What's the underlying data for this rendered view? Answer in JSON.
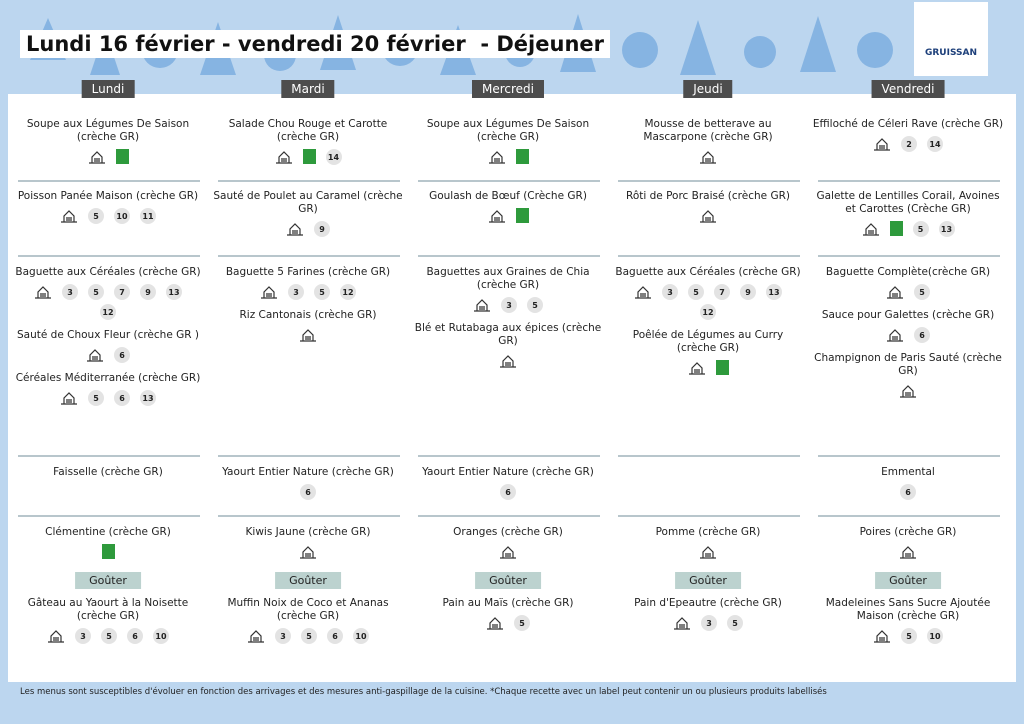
{
  "header": {
    "title": "Lundi 16 février - vendredi 20 février  - Déjeuner",
    "logo": "GRUISSAN"
  },
  "snack_label": "Goûter",
  "days": [
    {
      "name": "Lundi",
      "sections": [
        [
          {
            "name": "Soupe aux Légumes De Saison (crèche GR)",
            "house": true,
            "bio": true
          }
        ],
        [
          {
            "name": "Poisson Panée Maison (crèche GR)",
            "house": true,
            "allergens": [
              5,
              10,
              11
            ]
          }
        ],
        [
          {
            "name": "Baguette aux Céréales (crèche GR)",
            "house": true,
            "allergens": [
              3,
              5,
              7,
              9,
              13,
              12
            ]
          },
          {
            "name": "Sauté de Choux Fleur (crèche GR )",
            "house": true,
            "allergens": [
              6
            ]
          },
          {
            "name": "Céréales Méditerranée (crèche GR)",
            "house": true,
            "allergens": [
              5,
              6,
              13
            ]
          }
        ],
        [
          {
            "name": "Faisselle (crèche GR)"
          }
        ],
        [
          {
            "name": "Clémentine (crèche GR)",
            "bio": true
          }
        ]
      ],
      "snack": [
        {
          "name": "Gâteau au Yaourt à la Noisette (crèche GR)",
          "house": true,
          "allergens": [
            3,
            5,
            6,
            10
          ]
        }
      ]
    },
    {
      "name": "Mardi",
      "sections": [
        [
          {
            "name": "Salade Chou Rouge et Carotte (crèche GR)",
            "house": true,
            "bio": true,
            "allergens": [
              14
            ]
          }
        ],
        [
          {
            "name": "Sauté de Poulet au Caramel (crèche GR)",
            "house": true,
            "allergens": [
              9
            ]
          }
        ],
        [
          {
            "name": "Baguette 5 Farines (crèche GR)",
            "house": true,
            "allergens": [
              3,
              5,
              12
            ]
          },
          {
            "name": "Riz Cantonais (crèche GR)",
            "house": true
          }
        ],
        [
          {
            "name": "Yaourt Entier Nature (crèche GR)",
            "allergens": [
              6
            ]
          }
        ],
        [
          {
            "name": "Kiwis Jaune (crèche GR)",
            "house": true
          }
        ]
      ],
      "snack": [
        {
          "name": "Muffin Noix de Coco et Ananas (crèche GR)",
          "house": true,
          "allergens": [
            3,
            5,
            6,
            10
          ]
        }
      ]
    },
    {
      "name": "Mercredi",
      "sections": [
        [
          {
            "name": "Soupe aux Légumes De Saison (crèche GR)",
            "house": true,
            "bio": true
          }
        ],
        [
          {
            "name": "Goulash de Bœuf (Crèche GR)",
            "house": true,
            "bio": true
          }
        ],
        [
          {
            "name": "Baguettes aux Graines de Chia (crèche GR)",
            "house": true,
            "allergens": [
              3,
              5
            ]
          },
          {
            "name": "Blé et Rutabaga aux épices (crèche GR)",
            "house": true
          }
        ],
        [
          {
            "name": "Yaourt Entier Nature (crèche GR)",
            "allergens": [
              6
            ]
          }
        ],
        [
          {
            "name": "Oranges (crèche GR)",
            "house": true
          }
        ]
      ],
      "snack": [
        {
          "name": "Pain au Maïs (crèche GR)",
          "house": true,
          "allergens": [
            5
          ]
        }
      ]
    },
    {
      "name": "Jeudi",
      "sections": [
        [
          {
            "name": "Mousse de betterave au Mascarpone (crèche GR)",
            "house": true
          }
        ],
        [
          {
            "name": "Rôti de Porc Braisé (crèche GR)",
            "house": true
          }
        ],
        [
          {
            "name": "Baguette aux Céréales (crèche GR)",
            "house": true,
            "allergens": [
              3,
              5,
              7,
              9,
              13,
              12
            ]
          },
          {
            "name": "Poêlée de Légumes au Curry (crèche GR)",
            "house": true,
            "bio": true
          }
        ],
        [],
        [
          {
            "name": "Pomme (crèche GR)",
            "house": true
          }
        ]
      ],
      "snack": [
        {
          "name": "Pain d'Epeautre (crèche GR)",
          "house": true,
          "allergens": [
            3,
            5
          ]
        }
      ]
    },
    {
      "name": "Vendredi",
      "sections": [
        [
          {
            "name": "Effiloché de Céleri Rave (crèche GR)",
            "house": true,
            "allergens": [
              2,
              14
            ]
          }
        ],
        [
          {
            "name": "Galette de Lentilles Corail, Avoines et Carottes (Crèche GR)",
            "house": true,
            "bio": true,
            "allergens": [
              5,
              13
            ]
          }
        ],
        [
          {
            "name": "Baguette Complète(crèche GR)",
            "house": true,
            "allergens": [
              5
            ]
          },
          {
            "name": "Sauce pour Galettes (crèche GR)",
            "house": true,
            "allergens": [
              6
            ]
          },
          {
            "name": "Champignon de Paris Sauté (crèche GR)",
            "house": true
          }
        ],
        [
          {
            "name": "Emmental",
            "allergens": [
              6
            ]
          }
        ],
        [
          {
            "name": "Poires (crèche GR)",
            "house": true
          }
        ]
      ],
      "snack": [
        {
          "name": "Madeleines Sans Sucre Ajoutée Maison (crèche GR)",
          "house": true,
          "allergens": [
            5,
            10
          ]
        }
      ]
    }
  ],
  "footer": "Les menus sont susceptibles d'évoluer en fonction des arrivages et des mesures anti-gaspillage de la cuisine. *Chaque recette avec un label peut contenir un ou plusieurs produits labellisés"
}
